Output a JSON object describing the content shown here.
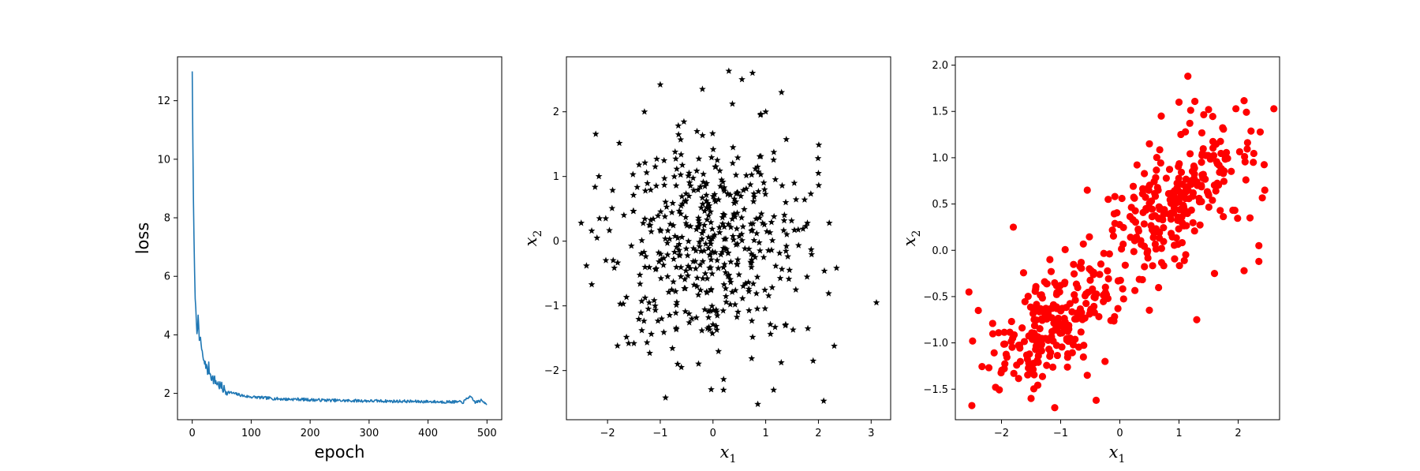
{
  "figure": {
    "layout": "1x3 subplots"
  },
  "chart_data": [
    {
      "type": "line",
      "title": "",
      "xlabel": "epoch",
      "ylabel": "loss",
      "xlim": [
        -25,
        525
      ],
      "ylim": [
        1.1,
        13.5
      ],
      "xticks": [
        0,
        100,
        200,
        300,
        400,
        500
      ],
      "yticks": [
        2,
        4,
        6,
        8,
        10,
        12
      ],
      "color": "#1f77b4",
      "series": [
        {
          "x": [
            0,
            2,
            4,
            6,
            8,
            10,
            12,
            14,
            16,
            18,
            20,
            22,
            24,
            26,
            28,
            30,
            35,
            40,
            45,
            50,
            55,
            60,
            70,
            80,
            90,
            100,
            120,
            140,
            160,
            180,
            200,
            220,
            240,
            260,
            280,
            300,
            320,
            340,
            360,
            380,
            400,
            420,
            440,
            460,
            470,
            480,
            490,
            500
          ],
          "y": [
            13.0,
            8.5,
            6.0,
            4.8,
            4.2,
            4.5,
            3.8,
            3.9,
            3.4,
            3.3,
            3.0,
            3.1,
            2.9,
            2.7,
            2.9,
            2.7,
            2.5,
            2.4,
            2.3,
            2.2,
            2.1,
            2.05,
            2.0,
            1.95,
            1.9,
            1.88,
            1.85,
            1.82,
            1.8,
            1.8,
            1.78,
            1.77,
            1.76,
            1.75,
            1.75,
            1.74,
            1.74,
            1.73,
            1.73,
            1.72,
            1.72,
            1.71,
            1.71,
            1.7,
            1.9,
            1.7,
            1.75,
            1.65
          ]
        }
      ]
    },
    {
      "type": "scatter",
      "title": "",
      "xlabel": "x1",
      "ylabel": "x2",
      "xlim": [
        -2.78,
        3.37
      ],
      "ylim": [
        -2.76,
        2.85
      ],
      "xticks": [
        -2,
        -1,
        0,
        1,
        2,
        3
      ],
      "yticks": [
        -2,
        -1,
        0,
        1,
        2
      ],
      "marker": "star",
      "color": "#000000",
      "series": [
        {
          "x": [
            3.1,
            -2.5,
            -2.4,
            -1.0,
            0.3,
            0.75,
            1.3,
            2.1,
            -1.2,
            2.3,
            -0.6,
            0.85,
            1.15,
            -1.5,
            -1.6,
            0.2,
            1.0,
            -1.3,
            2.0,
            0.9,
            -0.2,
            0.55,
            -2.2,
            -2.3,
            -0.9,
            1.8,
            1.9
          ],
          "y": [
            -0.95,
            0.28,
            -0.38,
            2.42,
            2.63,
            2.6,
            2.3,
            -2.47,
            -1.73,
            -1.62,
            -1.95,
            -2.52,
            -2.3,
            -1.58,
            -1.58,
            -2.3,
            2.0,
            2.0,
            1.05,
            1.95,
            2.35,
            2.5,
            0.05,
            -0.67,
            -2.42,
            -1.35,
            -1.85
          ]
        }
      ]
    },
    {
      "type": "scatter",
      "title": "",
      "xlabel": "x1",
      "ylabel": "x2",
      "xlim": [
        -2.78,
        2.7
      ],
      "ylim": [
        -1.83,
        2.09
      ],
      "xticks": [
        -2,
        -1,
        0,
        1,
        2
      ],
      "yticks": [
        -1.5,
        -1.0,
        -0.5,
        0.0,
        0.5,
        1.0,
        1.5,
        2.0
      ],
      "marker": "circle",
      "color": "#ff0000",
      "series": [
        {
          "x": [
            1.15,
            1.3,
            2.45,
            -2.55,
            -0.55,
            0.7,
            2.35,
            2.35,
            2.1,
            -1.1,
            -1.5,
            -0.4,
            -2.1,
            -1.8,
            -0.25,
            1.0,
            1.5,
            0.5,
            -0.55,
            1.6,
            2.2
          ],
          "y": [
            1.88,
            -0.75,
            0.65,
            -0.45,
            0.65,
            1.45,
            0.05,
            -0.12,
            -0.22,
            -1.7,
            -1.6,
            -1.62,
            -1.48,
            0.25,
            -1.2,
            1.6,
            1.52,
            1.15,
            -1.35,
            -0.25,
            0.35
          ]
        }
      ]
    }
  ]
}
